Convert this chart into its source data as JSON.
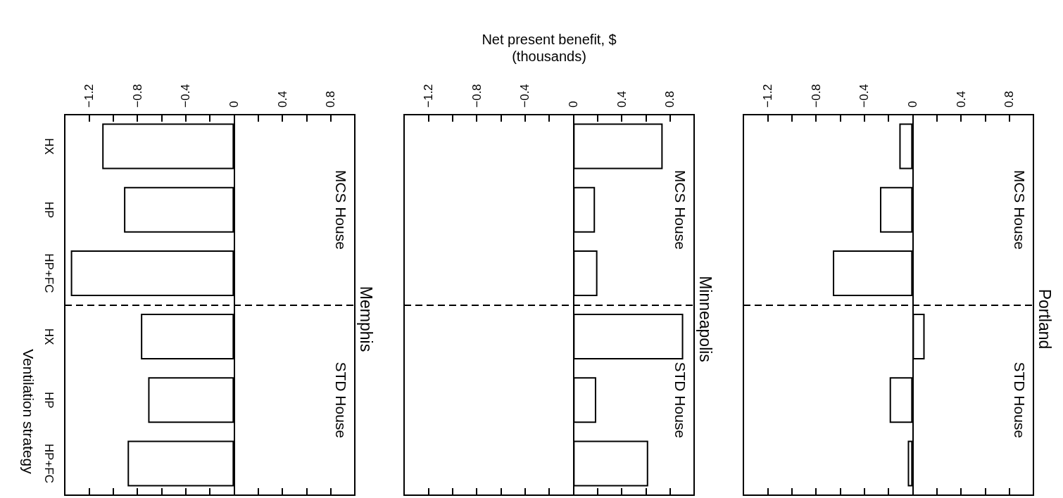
{
  "chart_data": [
    {
      "type": "bar",
      "orientation": "horizontal",
      "title": "Memphis",
      "ylabel": "Ventilation strategy",
      "categories": [
        "HX",
        "HP",
        "HP+FC",
        "HX",
        "HP",
        "HP+FC"
      ],
      "values": [
        -1.09,
        -0.91,
        -1.35,
        -0.77,
        -0.71,
        -0.88
      ],
      "color": "#ffffff",
      "xlim": [
        -1.4,
        1.0
      ],
      "xticks": [
        -1.2,
        {
          "value": -1.0,
          "label": null
        },
        -0.8,
        {
          "value": -0.6,
          "label": null
        },
        -0.4,
        {
          "value": -0.2,
          "label": null
        },
        0,
        {
          "value": 0.2,
          "label": null
        },
        0.4,
        {
          "value": 0.6,
          "label": null
        },
        0.8
      ],
      "annotations": [
        "MCS House",
        "STD House"
      ]
    },
    {
      "type": "bar",
      "orientation": "horizontal",
      "title": "Minneapolis",
      "xlabel": "Net present benefit, $\n(thousands)",
      "categories": [
        null,
        null,
        null,
        null,
        null,
        null
      ],
      "values": [
        0.74,
        0.18,
        0.2,
        0.91,
        0.19,
        0.62
      ],
      "color": "#ffffff",
      "xlim": [
        -1.4,
        1.0
      ],
      "xticks": [
        -1.2,
        {
          "value": -1.0,
          "label": null
        },
        -0.8,
        {
          "value": -0.6,
          "label": null
        },
        -0.4,
        {
          "value": -0.2,
          "label": null
        },
        0,
        {
          "value": 0.2,
          "label": null
        },
        0.4,
        {
          "value": 0.6,
          "label": null
        },
        0.8
      ],
      "tick_labels": "x",
      "annotations": [
        "MCS House",
        "STD House"
      ]
    },
    {
      "type": "bar",
      "orientation": "horizontal",
      "title": "Portland",
      "categories": [
        null,
        null,
        null,
        null,
        null,
        null
      ],
      "values": [
        -0.11,
        -0.27,
        -0.66,
        0.1,
        -0.19,
        -0.04
      ],
      "color": "#ffffff",
      "xlim": [
        -1.4,
        1.0
      ],
      "xticks": [
        -1.2,
        {
          "value": -1.0,
          "label": null
        },
        -0.8,
        {
          "value": -0.6,
          "label": null
        },
        -0.4,
        {
          "value": -0.2,
          "label": null
        },
        0,
        {
          "value": 0.2,
          "label": null
        },
        0.4,
        {
          "value": 0.6,
          "label": null
        },
        0.8
      ],
      "tick_labels": "x",
      "annotations": [
        "MCS House",
        "STD House"
      ]
    }
  ]
}
